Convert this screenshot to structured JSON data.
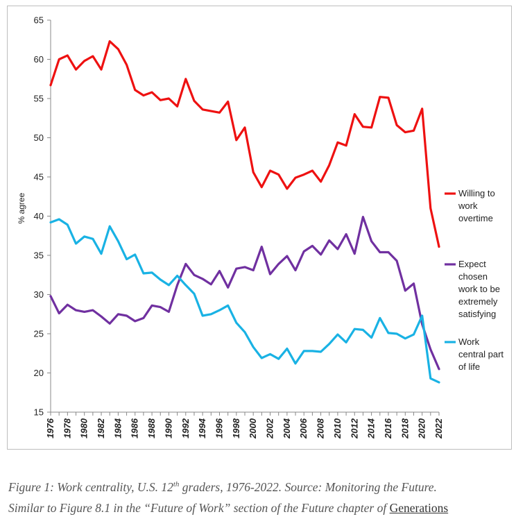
{
  "chart_data": {
    "type": "line",
    "title": "",
    "xlabel": "",
    "ylabel": "% agree",
    "ylim": [
      15,
      65
    ],
    "yticks": [
      15,
      20,
      25,
      30,
      35,
      40,
      45,
      50,
      55,
      60,
      65
    ],
    "xlim": [
      1976,
      2022
    ],
    "xticks": [
      1976,
      1978,
      1980,
      1982,
      1984,
      1986,
      1988,
      1990,
      1992,
      1994,
      1996,
      1998,
      2000,
      2002,
      2004,
      2006,
      2008,
      2010,
      2012,
      2014,
      2016,
      2018,
      2020,
      2022
    ],
    "grid": false,
    "legend_position": "right",
    "x": [
      1976,
      1977,
      1978,
      1979,
      1980,
      1981,
      1982,
      1983,
      1984,
      1985,
      1986,
      1987,
      1988,
      1989,
      1990,
      1991,
      1992,
      1993,
      1994,
      1995,
      1996,
      1997,
      1998,
      1999,
      2000,
      2001,
      2002,
      2003,
      2004,
      2005,
      2006,
      2007,
      2008,
      2009,
      2010,
      2011,
      2012,
      2013,
      2014,
      2015,
      2016,
      2017,
      2018,
      2019,
      2020,
      2021,
      2022
    ],
    "series": [
      {
        "name": "Willing to work overtime",
        "color": "#ee1111",
        "legend_lines": [
          "Willing to",
          "work",
          "overtime"
        ],
        "values": [
          56.7,
          60.0,
          60.5,
          58.7,
          59.8,
          60.4,
          58.7,
          62.3,
          61.3,
          59.3,
          56.1,
          55.4,
          55.8,
          54.8,
          55.0,
          54.0,
          57.5,
          54.7,
          53.6,
          53.4,
          53.2,
          54.6,
          49.7,
          51.3,
          45.6,
          43.7,
          45.8,
          45.3,
          43.5,
          44.9,
          45.3,
          45.8,
          44.4,
          46.5,
          49.4,
          49.0,
          53.0,
          51.4,
          51.3,
          55.2,
          55.1,
          51.6,
          50.7,
          50.9,
          53.7,
          41.0,
          36.1
        ]
      },
      {
        "name": "Expect chosen work to be extremely satisfying",
        "color": "#7030a0",
        "legend_lines": [
          "Expect",
          "chosen",
          "work to be",
          "extremely",
          "satisfying"
        ],
        "values": [
          29.8,
          27.6,
          28.7,
          28.0,
          27.8,
          28.0,
          27.2,
          26.3,
          27.5,
          27.3,
          26.6,
          27.0,
          28.6,
          28.4,
          27.8,
          31.2,
          33.9,
          32.5,
          32.0,
          31.3,
          33.0,
          30.9,
          33.3,
          33.5,
          33.1,
          36.1,
          32.6,
          33.9,
          34.9,
          33.1,
          35.5,
          36.2,
          35.1,
          36.9,
          35.8,
          37.7,
          35.2,
          39.9,
          36.8,
          35.4,
          35.4,
          34.3,
          30.5,
          31.4,
          26.2,
          23.0,
          20.5
        ]
      },
      {
        "name": "Work central part of life",
        "color": "#19b2e4",
        "legend_lines": [
          "Work",
          "central part",
          "of life"
        ],
        "values": [
          39.2,
          39.6,
          38.9,
          36.5,
          37.4,
          37.1,
          35.2,
          38.7,
          36.8,
          34.5,
          35.1,
          32.7,
          32.8,
          31.9,
          31.2,
          32.4,
          31.2,
          30.1,
          27.3,
          27.5,
          28.0,
          28.6,
          26.4,
          25.2,
          23.3,
          21.9,
          22.4,
          21.8,
          23.1,
          21.2,
          22.8,
          22.8,
          22.7,
          23.7,
          24.9,
          23.9,
          25.6,
          25.5,
          24.5,
          27.0,
          25.1,
          25.0,
          24.4,
          24.9,
          27.3,
          19.3,
          18.8
        ]
      }
    ]
  },
  "caption": {
    "line1_a": "Figure 1: Work centrality, U.S. 12",
    "line1_sup": "th",
    "line1_b": " graders, 1976-2022. Source: Monitoring the Future.",
    "line2_a": "Similar to Figure 8.1 in the “Future of Work” section of the Future chapter of ",
    "line2_link": "Generations"
  }
}
